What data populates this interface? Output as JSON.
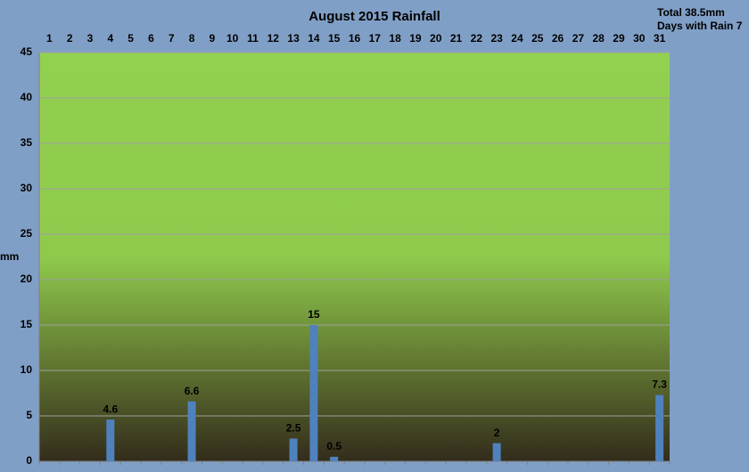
{
  "chart_data": {
    "type": "bar",
    "title": "August 2015 Rainfall",
    "annotations": [
      "Total  38.5mm",
      "Days with Rain 7"
    ],
    "y_label": "mm",
    "categories": [
      "1",
      "2",
      "3",
      "4",
      "5",
      "6",
      "7",
      "8",
      "9",
      "10",
      "11",
      "12",
      "13",
      "14",
      "15",
      "16",
      "17",
      "18",
      "19",
      "20",
      "21",
      "22",
      "23",
      "24",
      "25",
      "26",
      "27",
      "28",
      "29",
      "30",
      "31"
    ],
    "values": [
      null,
      null,
      null,
      4.6,
      null,
      null,
      null,
      6.6,
      null,
      null,
      null,
      null,
      2.5,
      15,
      0.5,
      null,
      null,
      null,
      null,
      null,
      null,
      null,
      2,
      null,
      null,
      null,
      null,
      null,
      null,
      null,
      7.3
    ],
    "color": "#4f81bd",
    "ylim": [
      0,
      45
    ],
    "yticks": [
      0,
      5,
      10,
      15,
      20,
      25,
      30,
      35,
      40,
      45
    ],
    "grid": true
  }
}
